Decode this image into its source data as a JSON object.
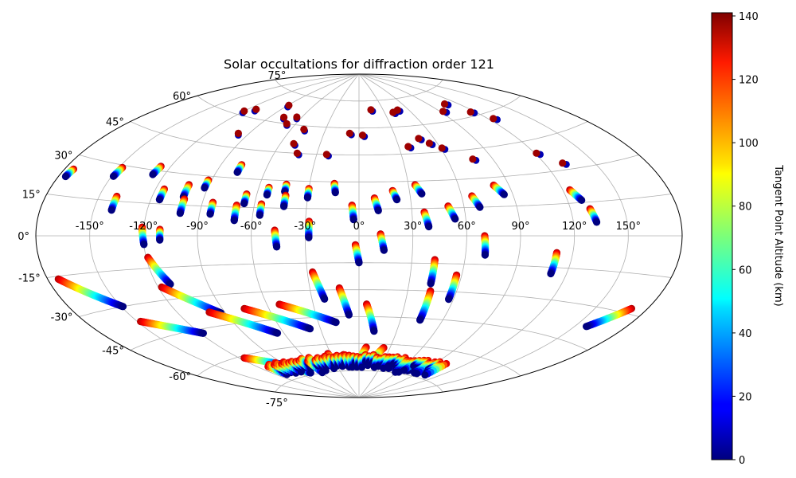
{
  "chart_data": {
    "type": "scatter",
    "projection": "aitoff",
    "title": "Solar occultations for diffraction order 121",
    "longitude_ticks": [
      "-150°",
      "-120°",
      "-90°",
      "-60°",
      "-30°",
      "0°",
      "30°",
      "60°",
      "90°",
      "120°",
      "150°"
    ],
    "latitude_ticks": [
      "75°",
      "60°",
      "45°",
      "30°",
      "15°",
      "0°",
      "-15°",
      "-30°",
      "-45°",
      "-60°",
      "-75°"
    ],
    "grid": true,
    "colorbar": {
      "label": "Tangent Point Altitude (km)",
      "range": [
        0,
        141
      ],
      "colormap": "jet",
      "tick_labels": [
        "0",
        "20",
        "40",
        "60",
        "80",
        "100",
        "120",
        "140"
      ]
    },
    "tracks": [
      {
        "lon": -175,
        "lat": 25,
        "dlat": -3,
        "dlon": -1
      },
      {
        "lon": -148,
        "lat": 29,
        "dlat": -4,
        "dlon": -1
      },
      {
        "lon": -140,
        "lat": 17,
        "dlat": -6,
        "dlon": 0
      },
      {
        "lon": -126,
        "lat": 32,
        "dlat": -4,
        "dlon": -1
      },
      {
        "lon": -115,
        "lat": 22,
        "dlat": -5,
        "dlon": 0
      },
      {
        "lon": -102,
        "lat": 25,
        "dlat": -6,
        "dlon": 0
      },
      {
        "lon": -92,
        "lat": 28,
        "dlat": -4,
        "dlon": 0
      },
      {
        "lon": -77,
        "lat": 37,
        "dlat": -4,
        "dlon": 0
      },
      {
        "lon": -66,
        "lat": 22,
        "dlat": -5,
        "dlon": 0
      },
      {
        "lon": -54,
        "lat": 26,
        "dlat": -4,
        "dlon": 0
      },
      {
        "lon": -44,
        "lat": 28,
        "dlat": -4,
        "dlon": 0
      },
      {
        "lon": -30,
        "lat": 26,
        "dlat": -5,
        "dlon": 0
      },
      {
        "lon": -15,
        "lat": 29,
        "dlat": -5,
        "dlon": 1
      },
      {
        "lon": -101,
        "lat": 18,
        "dlat": -7,
        "dlon": 0
      },
      {
        "lon": -84,
        "lat": 17,
        "dlat": -6,
        "dlon": 0
      },
      {
        "lon": -70,
        "lat": 16,
        "dlat": -8,
        "dlon": 0
      },
      {
        "lon": -56,
        "lat": 17,
        "dlat": -6,
        "dlon": 0
      },
      {
        "lon": -43,
        "lat": 22,
        "dlat": -6,
        "dlon": 0
      },
      {
        "lon": -4,
        "lat": 17,
        "dlat": -8,
        "dlon": 1
      },
      {
        "lon": 9,
        "lat": 21,
        "dlat": -7,
        "dlon": 2
      },
      {
        "lon": 20,
        "lat": 25,
        "dlat": -5,
        "dlon": 2
      },
      {
        "lon": 34,
        "lat": 28,
        "dlat": -5,
        "dlon": 3
      },
      {
        "lon": 37,
        "lat": 13,
        "dlat": -8,
        "dlon": 2
      },
      {
        "lon": 51,
        "lat": 16,
        "dlat": -7,
        "dlon": 3
      },
      {
        "lon": 66,
        "lat": 21,
        "dlat": -6,
        "dlon": 3
      },
      {
        "lon": 81,
        "lat": 26,
        "dlat": -5,
        "dlon": 4
      },
      {
        "lon": 124,
        "lat": 21,
        "dlat": -5,
        "dlon": 4
      },
      {
        "lon": 131,
        "lat": 12,
        "dlat": -6,
        "dlon": 2
      },
      {
        "lon": -121,
        "lat": 4,
        "dlat": -8,
        "dlon": 1
      },
      {
        "lon": -111,
        "lat": 3,
        "dlat": -5,
        "dlon": 0
      },
      {
        "lon": -47,
        "lat": 3,
        "dlat": -9,
        "dlon": 1
      },
      {
        "lon": -28,
        "lat": 8,
        "dlat": -9,
        "dlon": 0
      },
      {
        "lon": -2,
        "lat": -5,
        "dlat": -10,
        "dlon": 2
      },
      {
        "lon": 12,
        "lat": 1,
        "dlat": -9,
        "dlon": 2
      },
      {
        "lon": 70,
        "lat": 0,
        "dlat": -10,
        "dlon": 1
      },
      {
        "lon": 111,
        "lat": -8,
        "dlat": -10,
        "dlon": 0
      },
      {
        "lon": 43,
        "lat": -13,
        "dlat": -13,
        "dlon": 0
      },
      {
        "lon": 57,
        "lat": -21,
        "dlat": -13,
        "dlon": 0
      },
      {
        "lon": 44,
        "lat": -30,
        "dlat": -16,
        "dlon": 0
      },
      {
        "lon": -27,
        "lat": -20,
        "dlat": -15,
        "dlon": 5
      },
      {
        "lon": -12,
        "lat": -29,
        "dlat": -15,
        "dlon": 5
      },
      {
        "lon": 5,
        "lat": -38,
        "dlat": -15,
        "dlon": 7
      },
      {
        "lon": -119,
        "lat": -10,
        "dlat": -13,
        "dlon": 7
      },
      {
        "lon": -174,
        "lat": -16,
        "dlat": -14,
        "dlon": 25
      },
      {
        "lon": -148,
        "lat": -37,
        "dlat": -10,
        "dlon": 30
      },
      {
        "lon": -118,
        "lat": -24,
        "dlat": -15,
        "dlon": 25
      },
      {
        "lon": -100,
        "lat": -38,
        "dlat": -14,
        "dlon": 35
      },
      {
        "lon": -76,
        "lat": -38,
        "dlat": -13,
        "dlon": 38
      },
      {
        "lon": -52,
        "lat": -37,
        "dlat": -11,
        "dlon": 35
      },
      {
        "lon": 171,
        "lat": -28,
        "dlat": -10,
        "dlon": -14
      },
      {
        "lon": -116,
        "lat": -61,
        "dlat": -7,
        "dlon": 25
      },
      {
        "lon": 7,
        "lat": -62,
        "dlat": -11,
        "dlon": -10
      },
      {
        "lon": -82,
        "lat": -72,
        "dlat": -2,
        "dlon": 6
      },
      {
        "lon": -56,
        "lat": -71,
        "dlat": -3,
        "dlon": 5
      },
      {
        "lon": -33,
        "lat": -65,
        "dlat": -7,
        "dlon": 3
      },
      {
        "lon": -17,
        "lat": -66,
        "dlat": -6,
        "dlon": 2
      },
      {
        "lon": 24,
        "lat": -62,
        "dlat": -10,
        "dlon": -12
      },
      {
        "lon": 48,
        "lat": -70,
        "dlat": -3,
        "dlon": -5
      },
      {
        "lon": 78,
        "lat": -70,
        "dlat": -3,
        "dlon": -6
      },
      {
        "lon": 96,
        "lat": -68,
        "dlat": -4,
        "dlon": -15
      }
    ],
    "markers": [
      {
        "lon": -120,
        "lat": 62
      },
      {
        "lon": -113,
        "lat": 64
      },
      {
        "lon": -98,
        "lat": 52
      },
      {
        "lon": -89,
        "lat": 69
      },
      {
        "lon": -77,
        "lat": 63
      },
      {
        "lon": -68,
        "lat": 60
      },
      {
        "lon": -65,
        "lat": 64
      },
      {
        "lon": -50,
        "lat": 50
      },
      {
        "lon": -49,
        "lat": 58
      },
      {
        "lon": -23,
        "lat": 45
      },
      {
        "lon": -8,
        "lat": 57
      },
      {
        "lon": 3,
        "lat": 56
      },
      {
        "lon": 15,
        "lat": 70
      },
      {
        "lon": 40,
        "lat": 68
      },
      {
        "lon": 47,
        "lat": 69
      },
      {
        "lon": 37,
        "lat": 49
      },
      {
        "lon": 48,
        "lat": 53
      },
      {
        "lon": 54,
        "lat": 50
      },
      {
        "lon": 61,
        "lat": 47
      },
      {
        "lon": 77,
        "lat": 40
      },
      {
        "lon": 93,
        "lat": 65
      },
      {
        "lon": 107,
        "lat": 68
      },
      {
        "lon": 116,
        "lat": 62
      },
      {
        "lon": 124,
        "lat": 57
      },
      {
        "lon": 121,
        "lat": 39
      },
      {
        "lon": 131,
        "lat": 33
      },
      {
        "lon": -44,
        "lat": 45
      }
    ],
    "bottom_band": {
      "lat_range": [
        -74,
        -66
      ],
      "lon_range": [
        -110,
        105
      ]
    }
  }
}
